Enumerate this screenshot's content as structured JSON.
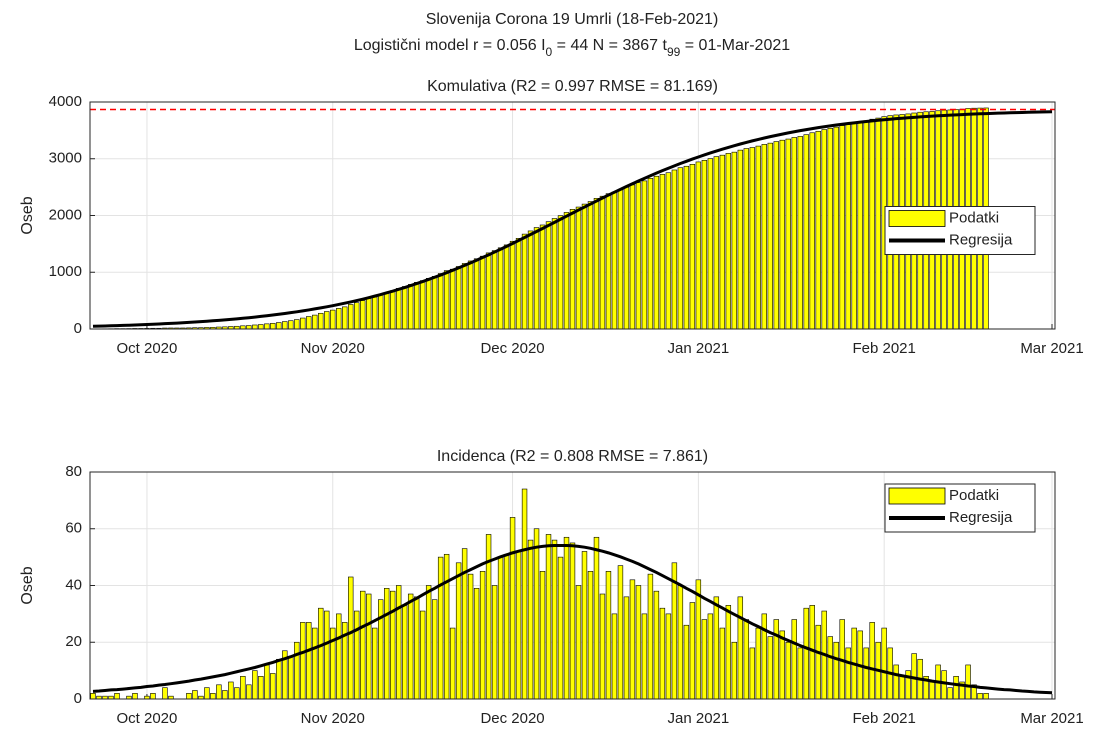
{
  "header": {
    "title": "Slovenija Corona 19 Umrli (18-Feb-2021)",
    "subtitle_parts": [
      "Logistični model r = 0.056  I",
      "0",
      " = 44  N = 3867  t",
      "99",
      " = 01-Mar-2021"
    ]
  },
  "chart_data": [
    {
      "type": "bar",
      "title": "Komulativa (R2 = 0.997  RMSE = 81.169)",
      "ylabel": "Oseb",
      "categories": [
        null,
        null,
        null,
        null,
        null,
        null,
        null,
        null,
        null,
        "Oct 2020",
        null,
        null,
        null,
        null,
        null,
        null,
        null,
        null,
        null,
        null,
        null,
        null,
        null,
        null,
        null,
        null,
        null,
        null,
        null,
        null,
        null,
        null,
        null,
        null,
        null,
        null,
        null,
        null,
        null,
        null,
        "Nov 2020",
        null,
        null,
        null,
        null,
        null,
        null,
        null,
        null,
        null,
        null,
        null,
        null,
        null,
        null,
        null,
        null,
        null,
        null,
        null,
        null,
        null,
        null,
        null,
        null,
        null,
        null,
        null,
        null,
        null,
        "Dec 2020",
        null,
        null,
        null,
        null,
        null,
        null,
        null,
        null,
        null,
        null,
        null,
        null,
        null,
        null,
        null,
        null,
        null,
        null,
        null,
        null,
        null,
        null,
        null,
        null,
        null,
        null,
        null,
        null,
        null,
        null,
        "Jan 2021",
        null,
        null,
        null,
        null,
        null,
        null,
        null,
        null,
        null,
        null,
        null,
        null,
        null,
        null,
        null,
        null,
        null,
        null,
        null,
        null,
        null,
        null,
        null,
        null,
        null,
        null,
        null,
        null,
        null,
        null,
        "Feb 2021",
        null,
        null,
        null,
        null,
        null,
        null,
        null,
        null,
        null,
        null,
        null,
        null,
        null,
        null,
        null,
        null,
        null,
        null,
        null,
        null,
        null,
        null,
        null,
        null,
        null,
        null,
        null,
        "Mar 2021"
      ],
      "series": [
        {
          "name": "Podatki",
          "color": "#ffff00",
          "values": [
            2,
            3,
            4,
            5,
            7,
            7,
            8,
            10,
            10,
            11,
            13,
            13,
            17,
            18,
            18,
            18,
            20,
            23,
            24,
            28,
            30,
            35,
            38,
            44,
            48,
            56,
            61,
            71,
            79,
            91,
            100,
            114,
            131,
            146,
            166,
            193,
            220,
            245,
            277,
            308,
            333,
            363,
            390,
            433,
            464,
            502,
            539,
            564,
            599,
            638,
            676,
            716,
            749,
            786,
            822,
            853,
            893,
            928,
            978,
            1029,
            1054,
            1102,
            1155,
            1199,
            1238,
            1283,
            1341,
            1381,
            1431,
            1482,
            1546,
            1598,
            1672,
            1728,
            1788,
            1833,
            1891,
            1947,
            1997,
            2054,
            2109,
            2149,
            2201,
            2246,
            2303,
            2340,
            2385,
            2415,
            2462,
            2498,
            2540,
            2580,
            2610,
            2654,
            2692,
            2724,
            2754,
            2802,
            2842,
            2868,
            2902,
            2944,
            2972,
            3002,
            3038,
            3063,
            3095,
            3116,
            3152,
            3180,
            3198,
            3223,
            3253,
            3275,
            3303,
            3327,
            3347,
            3375,
            3393,
            3425,
            3458,
            3484,
            3515,
            3537,
            3557,
            3585,
            3603,
            3628,
            3652,
            3670,
            3697,
            3717,
            3742,
            3760,
            3772,
            3780,
            3790,
            3806,
            3820,
            3828,
            3834,
            3846,
            3856,
            3860,
            3868,
            3874,
            3886,
            3891,
            3893,
            3895,
            null,
            null,
            null,
            null,
            null,
            null,
            null,
            null,
            null,
            null,
            null
          ]
        },
        {
          "name": "Regresija",
          "color": "#000000",
          "type": "line",
          "values": [
            48,
            51,
            54,
            57,
            60,
            64,
            67,
            71,
            75,
            79,
            84,
            89,
            94,
            99,
            104,
            110,
            116,
            123,
            130,
            137,
            145,
            153,
            161,
            170,
            179,
            189,
            199,
            210,
            222,
            234,
            246,
            260,
            273,
            288,
            303,
            319,
            336,
            354,
            372,
            391,
            411,
            433,
            455,
            477,
            501,
            526,
            552,
            579,
            607,
            637,
            667,
            699,
            731,
            765,
            800,
            836,
            873,
            912,
            951,
            992,
            1034,
            1077,
            1121,
            1166,
            1212,
            1259,
            1307,
            1356,
            1406,
            1456,
            1507,
            1559,
            1612,
            1665,
            1718,
            1771,
            1825,
            1879,
            1934,
            1988,
            2042,
            2096,
            2149,
            2202,
            2255,
            2308,
            2360,
            2411,
            2461,
            2511,
            2560,
            2608,
            2655,
            2701,
            2746,
            2790,
            2833,
            2875,
            2916,
            2955,
            2994,
            3031,
            3067,
            3102,
            3136,
            3168,
            3200,
            3230,
            3260,
            3288,
            3315,
            3341,
            3366,
            3390,
            3412,
            3434,
            3456,
            3476,
            3495,
            3513,
            3531,
            3548,
            3564,
            3579,
            3594,
            3607,
            3621,
            3633,
            3645,
            3657,
            3668,
            3678,
            3688,
            3697,
            3706,
            3714,
            3722,
            3730,
            3737,
            3744,
            3751,
            3757,
            3763,
            3768,
            3773,
            3778,
            3783,
            3788,
            3792,
            3796,
            3800,
            3803,
            3807,
            3810,
            3813,
            3816,
            3819,
            3821,
            3824,
            3826,
            3828
          ]
        }
      ],
      "reference_line": {
        "value": 3867,
        "color": "#ff0000",
        "style": "dashed"
      },
      "ylim": [
        0,
        4000
      ],
      "yticks": [
        0,
        1000,
        2000,
        3000,
        4000
      ],
      "grid": true,
      "legend": "east"
    },
    {
      "type": "bar",
      "title": "Incidenca (R2 = 0.808  RMSE = 7.861)",
      "ylabel": "Oseb",
      "categories": [
        null,
        null,
        null,
        null,
        null,
        null,
        null,
        null,
        null,
        "Oct 2020",
        null,
        null,
        null,
        null,
        null,
        null,
        null,
        null,
        null,
        null,
        null,
        null,
        null,
        null,
        null,
        null,
        null,
        null,
        null,
        null,
        null,
        null,
        null,
        null,
        null,
        null,
        null,
        null,
        null,
        null,
        "Nov 2020",
        null,
        null,
        null,
        null,
        null,
        null,
        null,
        null,
        null,
        null,
        null,
        null,
        null,
        null,
        null,
        null,
        null,
        null,
        null,
        null,
        null,
        null,
        null,
        null,
        null,
        null,
        null,
        null,
        null,
        "Dec 2020",
        null,
        null,
        null,
        null,
        null,
        null,
        null,
        null,
        null,
        null,
        null,
        null,
        null,
        null,
        null,
        null,
        null,
        null,
        null,
        null,
        null,
        null,
        null,
        null,
        null,
        null,
        null,
        null,
        null,
        null,
        "Jan 2021",
        null,
        null,
        null,
        null,
        null,
        null,
        null,
        null,
        null,
        null,
        null,
        null,
        null,
        null,
        null,
        null,
        null,
        null,
        null,
        null,
        null,
        null,
        null,
        null,
        null,
        null,
        null,
        null,
        null,
        null,
        "Feb 2021",
        null,
        null,
        null,
        null,
        null,
        null,
        null,
        null,
        null,
        null,
        null,
        null,
        null,
        null,
        null,
        null,
        null,
        null,
        null,
        null,
        null,
        null,
        null,
        null,
        null,
        null,
        null,
        "Mar 2021"
      ],
      "series": [
        {
          "name": "Podatki",
          "color": "#ffff00",
          "values": [
            2,
            1,
            1,
            1,
            2,
            0,
            1,
            2,
            0,
            1,
            2,
            0,
            4,
            1,
            0,
            0,
            2,
            3,
            1,
            4,
            2,
            5,
            3,
            6,
            4,
            8,
            5,
            10,
            8,
            12,
            9,
            14,
            17,
            15,
            20,
            27,
            27,
            25,
            32,
            31,
            25,
            30,
            27,
            43,
            31,
            38,
            37,
            25,
            35,
            39,
            38,
            40,
            33,
            37,
            36,
            31,
            40,
            35,
            50,
            51,
            25,
            48,
            53,
            44,
            39,
            45,
            58,
            40,
            50,
            51,
            64,
            52,
            74,
            56,
            60,
            45,
            58,
            56,
            50,
            57,
            55,
            40,
            52,
            45,
            57,
            37,
            45,
            30,
            47,
            36,
            42,
            40,
            30,
            44,
            38,
            32,
            30,
            48,
            40,
            26,
            34,
            42,
            28,
            30,
            36,
            25,
            33,
            20,
            36,
            28,
            18,
            25,
            30,
            22,
            28,
            24,
            20,
            28,
            18,
            32,
            33,
            26,
            31,
            22,
            20,
            28,
            18,
            25,
            24,
            18,
            27,
            20,
            25,
            18,
            12,
            8,
            10,
            16,
            14,
            8,
            6,
            12,
            10,
            4,
            8,
            6,
            12,
            5,
            2,
            2,
            null,
            null,
            null,
            null,
            null,
            null,
            null,
            null,
            null,
            null,
            null
          ]
        },
        {
          "name": "Regresija",
          "color": "#000000",
          "type": "line",
          "values": [
            2.7,
            2.8,
            3.0,
            3.2,
            3.3,
            3.5,
            3.7,
            3.9,
            4.1,
            4.4,
            4.6,
            4.9,
            5.1,
            5.4,
            5.7,
            6.0,
            6.3,
            6.7,
            7.0,
            7.4,
            7.8,
            8.2,
            8.6,
            9.1,
            9.6,
            10.1,
            10.6,
            11.1,
            11.7,
            12.3,
            12.9,
            13.6,
            14.2,
            14.9,
            15.7,
            16.4,
            17.2,
            18.0,
            18.8,
            19.7,
            20.6,
            21.5,
            22.5,
            23.4,
            24.4,
            25.5,
            26.5,
            27.6,
            28.7,
            29.8,
            30.9,
            32.1,
            33.2,
            34.4,
            35.5,
            36.7,
            37.9,
            39.0,
            40.2,
            41.3,
            42.4,
            43.5,
            44.6,
            45.6,
            46.6,
            47.6,
            48.5,
            49.3,
            50.1,
            50.8,
            51.5,
            52.1,
            52.6,
            53.1,
            53.5,
            53.8,
            54.0,
            54.1,
            54.1,
            54.1,
            54.0,
            53.8,
            53.5,
            53.1,
            52.6,
            52.1,
            51.5,
            50.8,
            50.1,
            49.3,
            48.5,
            47.6,
            46.6,
            45.6,
            44.6,
            43.5,
            42.4,
            41.3,
            40.2,
            39.0,
            37.9,
            36.7,
            35.5,
            34.4,
            33.2,
            32.1,
            30.9,
            29.8,
            28.7,
            27.6,
            26.5,
            25.5,
            24.4,
            23.4,
            22.5,
            21.5,
            20.6,
            19.7,
            18.8,
            18.0,
            17.2,
            16.4,
            15.7,
            14.9,
            14.2,
            13.6,
            12.9,
            12.3,
            11.7,
            11.1,
            10.6,
            10.1,
            9.6,
            9.1,
            8.6,
            8.2,
            7.8,
            7.4,
            7.0,
            6.7,
            6.3,
            6.0,
            5.7,
            5.4,
            5.1,
            4.9,
            4.6,
            4.4,
            4.1,
            3.9,
            3.7,
            3.5,
            3.3,
            3.2,
            3.0,
            2.8,
            2.7,
            2.5,
            2.4,
            2.3,
            2.2
          ]
        }
      ],
      "ylim": [
        0,
        80
      ],
      "yticks": [
        0,
        20,
        40,
        60,
        80
      ],
      "grid": true,
      "legend": "northeast"
    }
  ]
}
